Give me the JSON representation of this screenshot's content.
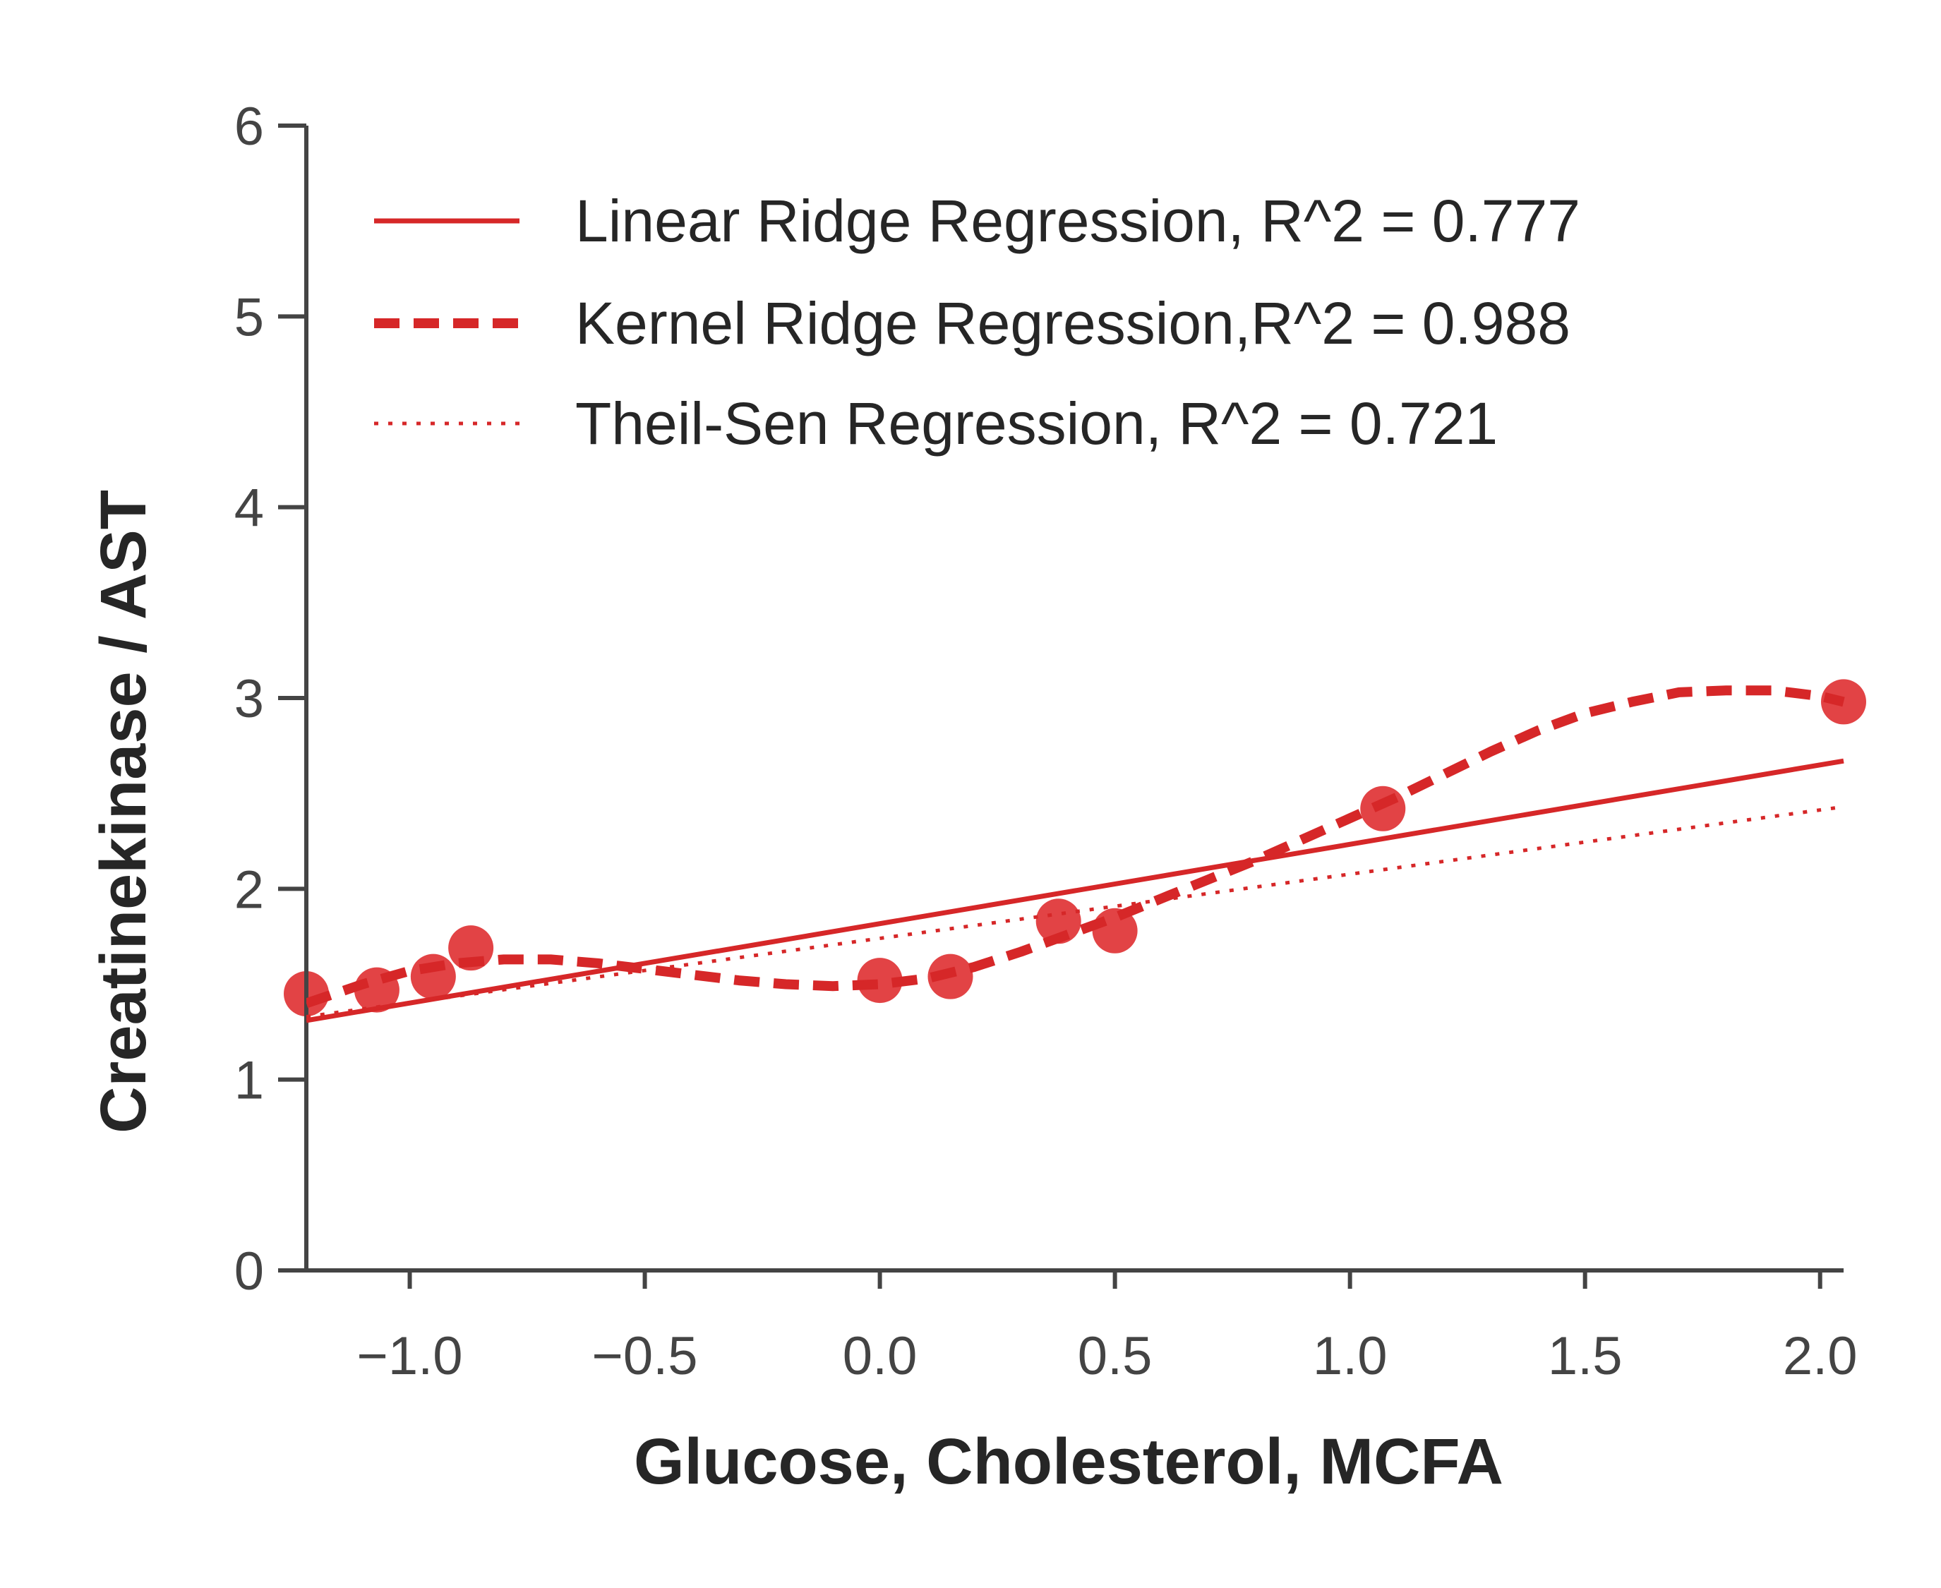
{
  "chart_data": {
    "type": "scatter",
    "title": "",
    "xlabel": "Glucose, Cholesterol, MCFA",
    "ylabel": "Creatinekinase / AST",
    "xlim": [
      -1.22,
      2.05
    ],
    "ylim": [
      0,
      6
    ],
    "xticks": [
      -1.0,
      -0.5,
      0.0,
      0.5,
      1.0,
      1.5,
      2.0
    ],
    "xtick_labels": [
      "−1.0",
      "−0.5",
      "0.0",
      "0.5",
      "1.0",
      "1.5",
      "2.0"
    ],
    "yticks": [
      0,
      1,
      2,
      3,
      4,
      5,
      6
    ],
    "ytick_labels": [
      "0",
      "1",
      "2",
      "3",
      "4",
      "5",
      "6"
    ],
    "grid": false,
    "legend_position": "top",
    "colors": {
      "line": "#d62728",
      "points": "#e0393b",
      "axis": "#444444"
    },
    "points": {
      "x": [
        -1.22,
        -1.07,
        -0.95,
        -0.87,
        0.0,
        0.15,
        0.38,
        0.5,
        1.07,
        2.05
      ],
      "y": [
        1.45,
        1.47,
        1.54,
        1.69,
        1.52,
        1.54,
        1.83,
        1.78,
        2.42,
        2.98
      ]
    },
    "series": [
      {
        "name": "Linear Ridge Regression, R^2 = 0.777",
        "style": "solid",
        "x": [
          -1.22,
          2.05
        ],
        "y": [
          1.31,
          2.67
        ]
      },
      {
        "name": "Kernel Ridge Regression,R^2 = 0.988",
        "style": "dashed",
        "x": [
          -1.22,
          -1.1,
          -1.0,
          -0.9,
          -0.8,
          -0.7,
          -0.6,
          -0.5,
          -0.4,
          -0.3,
          -0.2,
          -0.1,
          0.0,
          0.1,
          0.2,
          0.3,
          0.4,
          0.5,
          0.6,
          0.7,
          0.8,
          0.9,
          1.0,
          1.1,
          1.2,
          1.3,
          1.4,
          1.5,
          1.6,
          1.7,
          1.8,
          1.9,
          2.0,
          2.05
        ],
        "y": [
          1.4,
          1.5,
          1.57,
          1.61,
          1.63,
          1.63,
          1.61,
          1.58,
          1.55,
          1.52,
          1.5,
          1.49,
          1.5,
          1.53,
          1.59,
          1.67,
          1.76,
          1.85,
          1.95,
          2.05,
          2.15,
          2.26,
          2.37,
          2.48,
          2.6,
          2.72,
          2.83,
          2.92,
          2.98,
          3.03,
          3.04,
          3.04,
          3.01,
          2.98
        ]
      },
      {
        "name": "Theil-Sen Regression, R^2 = 0.721",
        "style": "dotted",
        "x": [
          -1.22,
          2.05
        ],
        "y": [
          1.33,
          2.43
        ]
      }
    ]
  }
}
